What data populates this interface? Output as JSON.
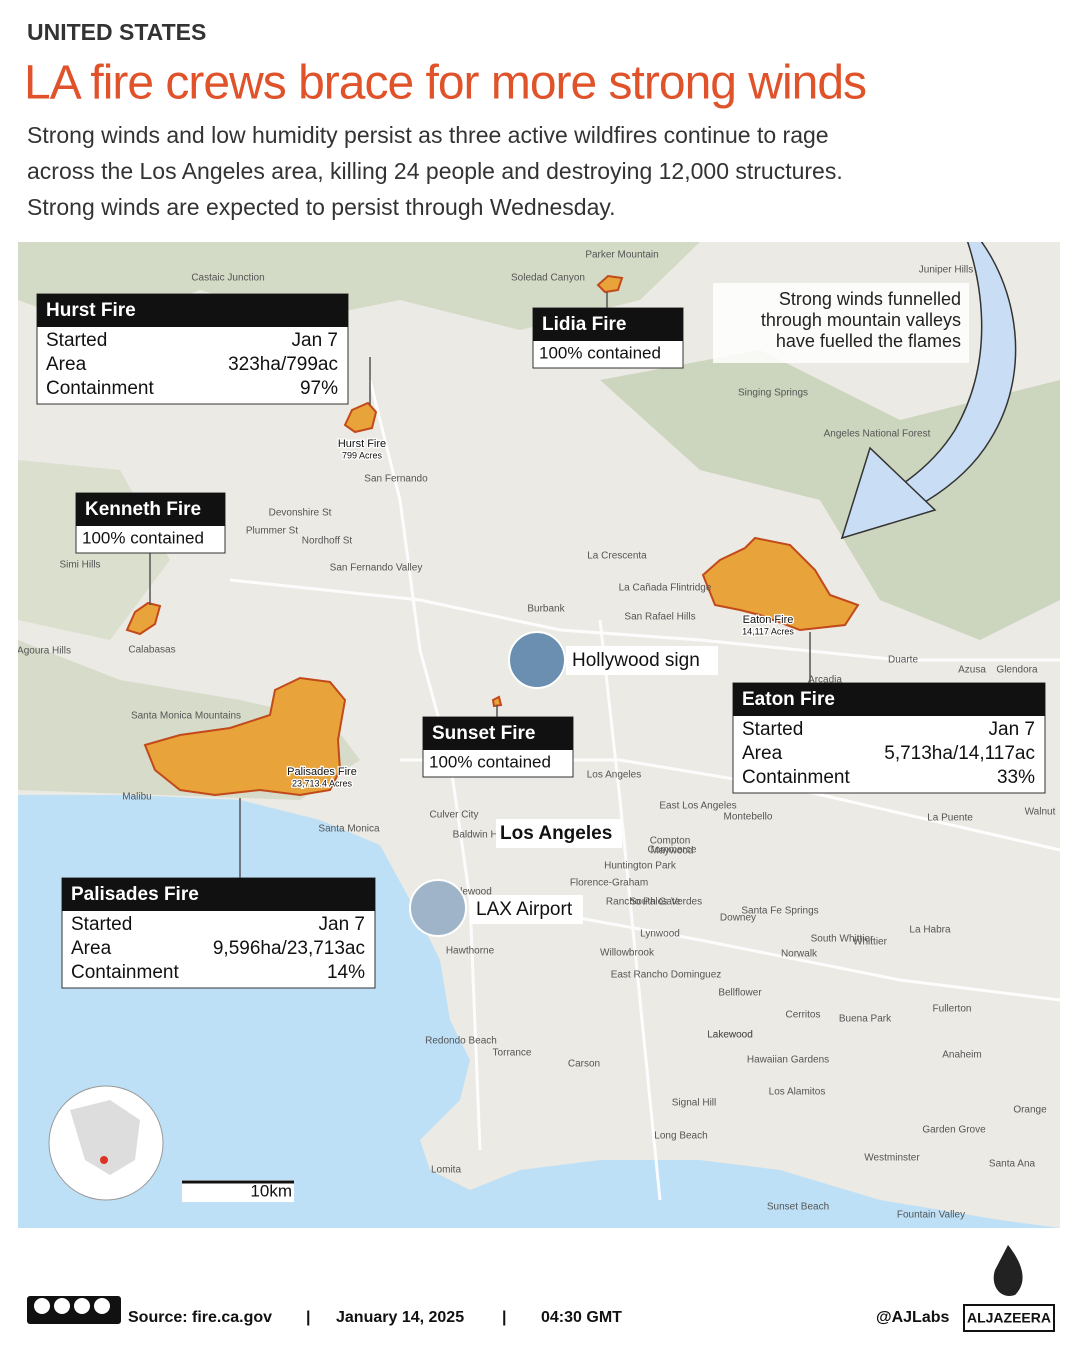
{
  "header": {
    "kicker": "UNITED STATES",
    "title": "LA fire crews brace for more strong winds",
    "subtitle": [
      "Strong winds and low humidity persist as three active wildfires continue to rage",
      "across the Los Angeles area, killing 24 people and destroying 12,000 structures.",
      "Strong winds are expected to persist through Wednesday."
    ]
  },
  "callouts": [
    {
      "name": "Hurst Fire",
      "rows": [
        [
          "Started",
          "Jan 7"
        ],
        [
          "Area",
          "323ha/799ac"
        ],
        [
          "Containment",
          "97%"
        ]
      ]
    },
    {
      "name": "Lidia Fire",
      "status": "100% contained"
    },
    {
      "name": "Kenneth Fire",
      "status": "100% contained"
    },
    {
      "name": "Eaton Fire",
      "rows": [
        [
          "Started",
          "Jan 7"
        ],
        [
          "Area",
          "5,713ha/14,117ac"
        ],
        [
          "Containment",
          "33%"
        ]
      ]
    },
    {
      "name": "Sunset Fire",
      "status": "100% contained"
    },
    {
      "name": "Palisades Fire",
      "rows": [
        [
          "Started",
          "Jan 7"
        ],
        [
          "Area",
          "9,596ha/23,713ac"
        ],
        [
          "Containment",
          "14%"
        ]
      ]
    }
  ],
  "fire_labels": [
    [
      "Hurst Fire",
      "799 Acres"
    ],
    [
      "Eaton Fire",
      "14,117 Acres"
    ],
    [
      "Palisades Fire",
      "23,713.4 Acres"
    ]
  ],
  "wind_note": [
    "Strong winds funnelled",
    "through mountain valleys",
    "have fuelled the flames"
  ],
  "landmarks": [
    "Hollywood sign",
    "LAX Airport",
    "Los Angeles"
  ],
  "places": [
    "Castaic Junction",
    "Soledad Canyon",
    "Parker Mountain",
    "Juniper Hills",
    "San Fernando",
    "Devonshire St",
    "Plummer St",
    "Nordhoff St",
    "San Fernando Valley",
    "Simi Hills",
    "Calabasas",
    "Agoura Hills",
    "Santa Monica Mountains",
    "Malibu",
    "Santa Monica",
    "Culver City",
    "Burbank",
    "La Crescenta",
    "La Cañada Flintridge",
    "San Rafael Hills",
    "Los Angeles",
    "East Los Angeles",
    "Montebello",
    "Inglewood",
    "Hawthorne",
    "Torrance",
    "Redondo Beach",
    "Carson",
    "Compton",
    "Lynwood",
    "South Gate",
    "Downey",
    "Norwalk",
    "Bellflower",
    "Lakewood",
    "Long Beach",
    "Signal Hill",
    "Cerritos",
    "Buena Park",
    "Fullerton",
    "Anaheim",
    "Orange",
    "Garden Grove",
    "Santa Ana",
    "Westminster",
    "Fountain Valley",
    "La Habra",
    "Whittier",
    "Azusa",
    "Glendora",
    "Duarte",
    "Arcadia",
    "Walnut",
    "La Puente",
    "Huntington Park",
    "Florence-Graham",
    "Rancho Palos Verdes",
    "Lomita",
    "Sunset Beach",
    "Los Alamitos",
    "Hawaiian Gardens",
    "Singing Springs",
    "Angeles National Forest",
    "Baldwin Hills",
    "Maywood",
    "Commerce",
    "Santa Fe Springs",
    "South Whittier",
    "Willowbrook",
    "East Rancho Dominguez",
    "Lakewood"
  ],
  "scale": "10km",
  "footer": {
    "source": "Source:  fire.ca.gov",
    "sep": "|",
    "date": "January 14, 2025",
    "time": "04:30 GMT",
    "handle": "@AJLabs",
    "logo": "ALJAZEERA"
  }
}
